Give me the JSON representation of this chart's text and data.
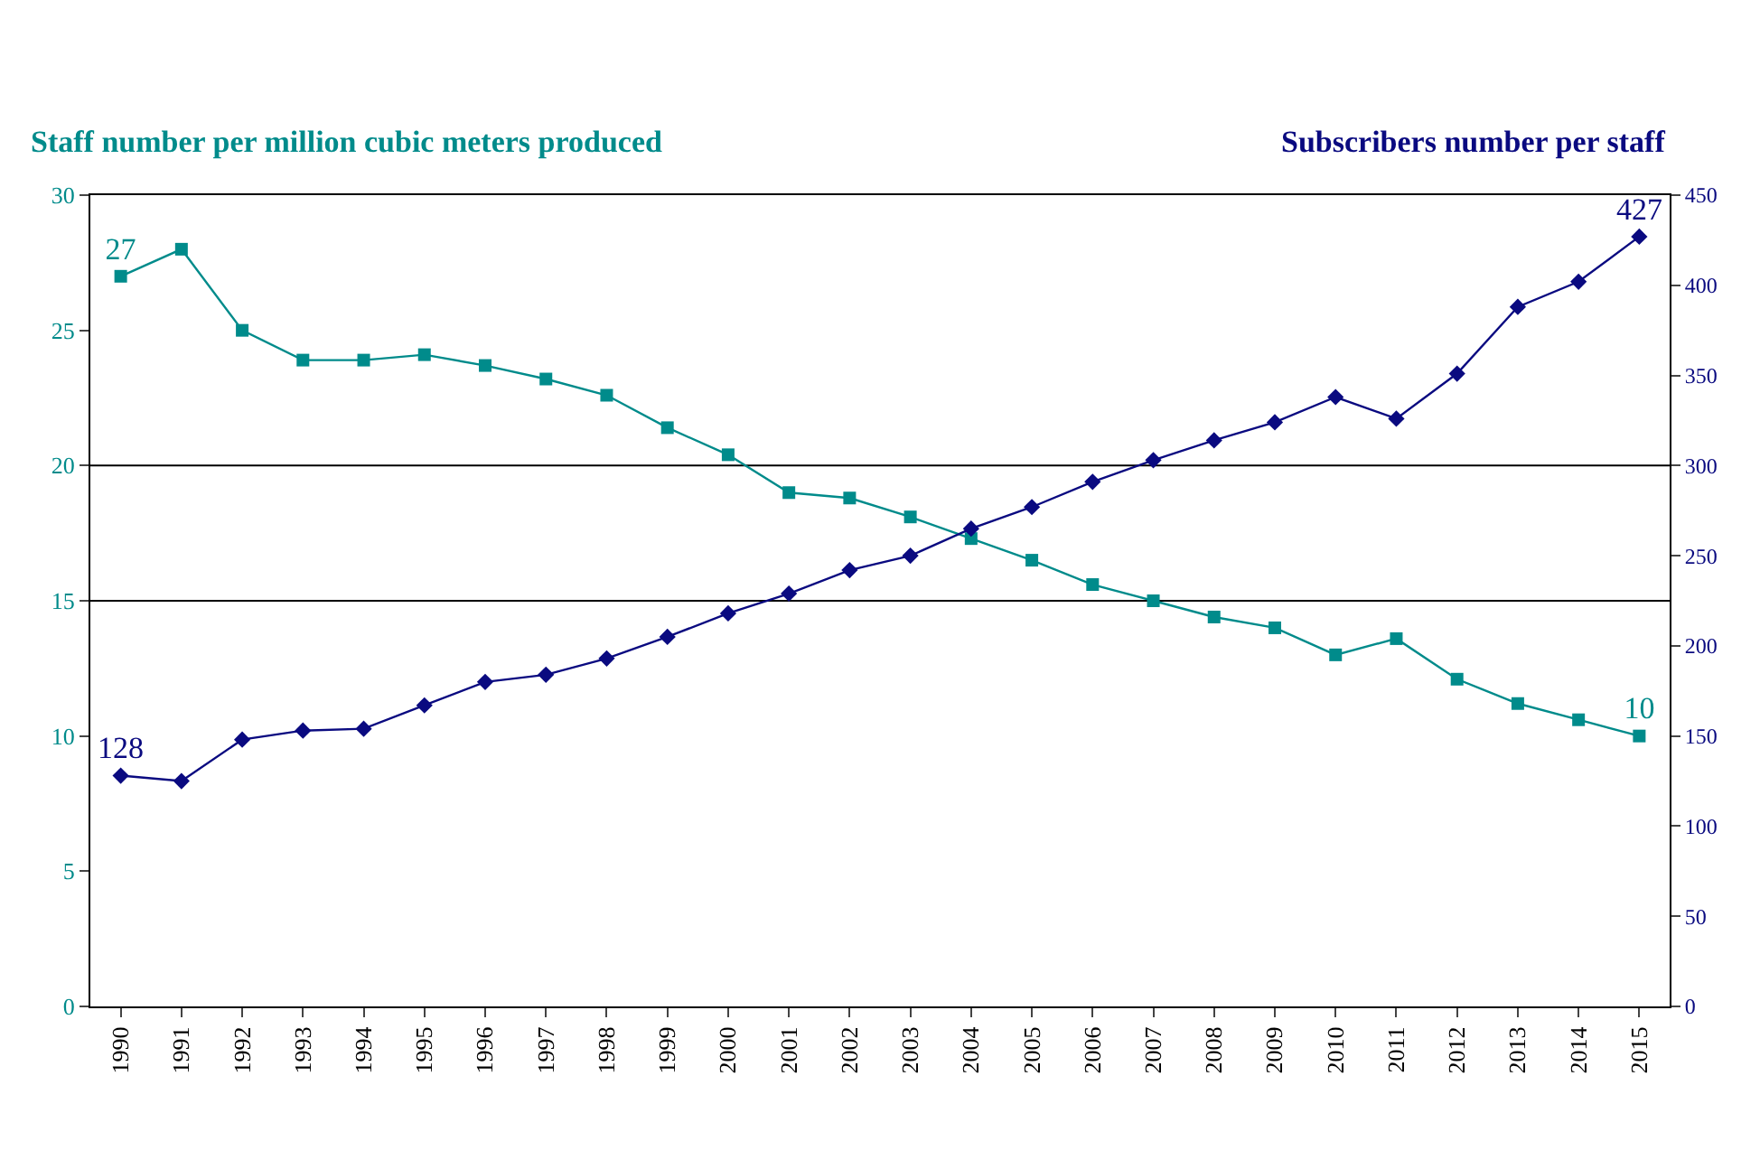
{
  "chart_data": {
    "type": "line",
    "ylabel": "Staff number per million cubic meters produced",
    "y2label": "Subscribers number per staff",
    "categories": [
      "1990",
      "1991",
      "1992",
      "1993",
      "1994",
      "1995",
      "1996",
      "1997",
      "1998",
      "1999",
      "2000",
      "2001",
      "2002",
      "2003",
      "2004",
      "2005",
      "2006",
      "2007",
      "2008",
      "2009",
      "2010",
      "2011",
      "2012",
      "2013",
      "2014",
      "2015"
    ],
    "series": [
      {
        "color": "#008b8b",
        "marker": "square",
        "values": [
          27,
          28.0,
          25.0,
          23.9,
          23.9,
          24.1,
          23.7,
          23.2,
          22.6,
          21.4,
          20.4,
          19.0,
          18.8,
          18.1,
          17.3,
          16.5,
          15.6,
          15.0,
          14.4,
          14.0,
          13.0,
          13.6,
          12.1,
          11.2,
          10.6,
          10
        ],
        "value_labels": [
          "27",
          null,
          null,
          null,
          null,
          null,
          null,
          null,
          null,
          null,
          null,
          null,
          null,
          null,
          null,
          null,
          null,
          null,
          null,
          null,
          null,
          null,
          null,
          null,
          null,
          "10"
        ]
      },
      {
        "color": "#0a0a80",
        "marker": "diamond",
        "axis": "y2",
        "values": [
          128,
          125,
          148,
          153,
          154,
          167,
          180,
          184,
          193,
          205,
          218,
          229,
          242,
          250,
          265,
          277,
          291,
          303,
          314,
          324,
          338,
          326,
          351,
          388,
          402,
          427
        ],
        "value_labels": [
          "128",
          null,
          null,
          null,
          null,
          null,
          null,
          null,
          null,
          null,
          null,
          null,
          null,
          null,
          null,
          null,
          null,
          null,
          null,
          null,
          null,
          null,
          null,
          null,
          null,
          "427"
        ]
      }
    ],
    "ylim": [
      0,
      30
    ],
    "yticks": [
      0,
      5,
      10,
      15,
      20,
      25,
      30
    ],
    "y2lim": [
      0,
      450
    ],
    "y2ticks": [
      0,
      50,
      100,
      150,
      200,
      250,
      300,
      350,
      400,
      450
    ],
    "ref_lines": [
      {
        "axis": "y",
        "value": 20,
        "color": "#000000"
      },
      {
        "axis": "y",
        "value": 15,
        "color": "#000000"
      }
    ],
    "grid": false,
    "legend": false
  }
}
